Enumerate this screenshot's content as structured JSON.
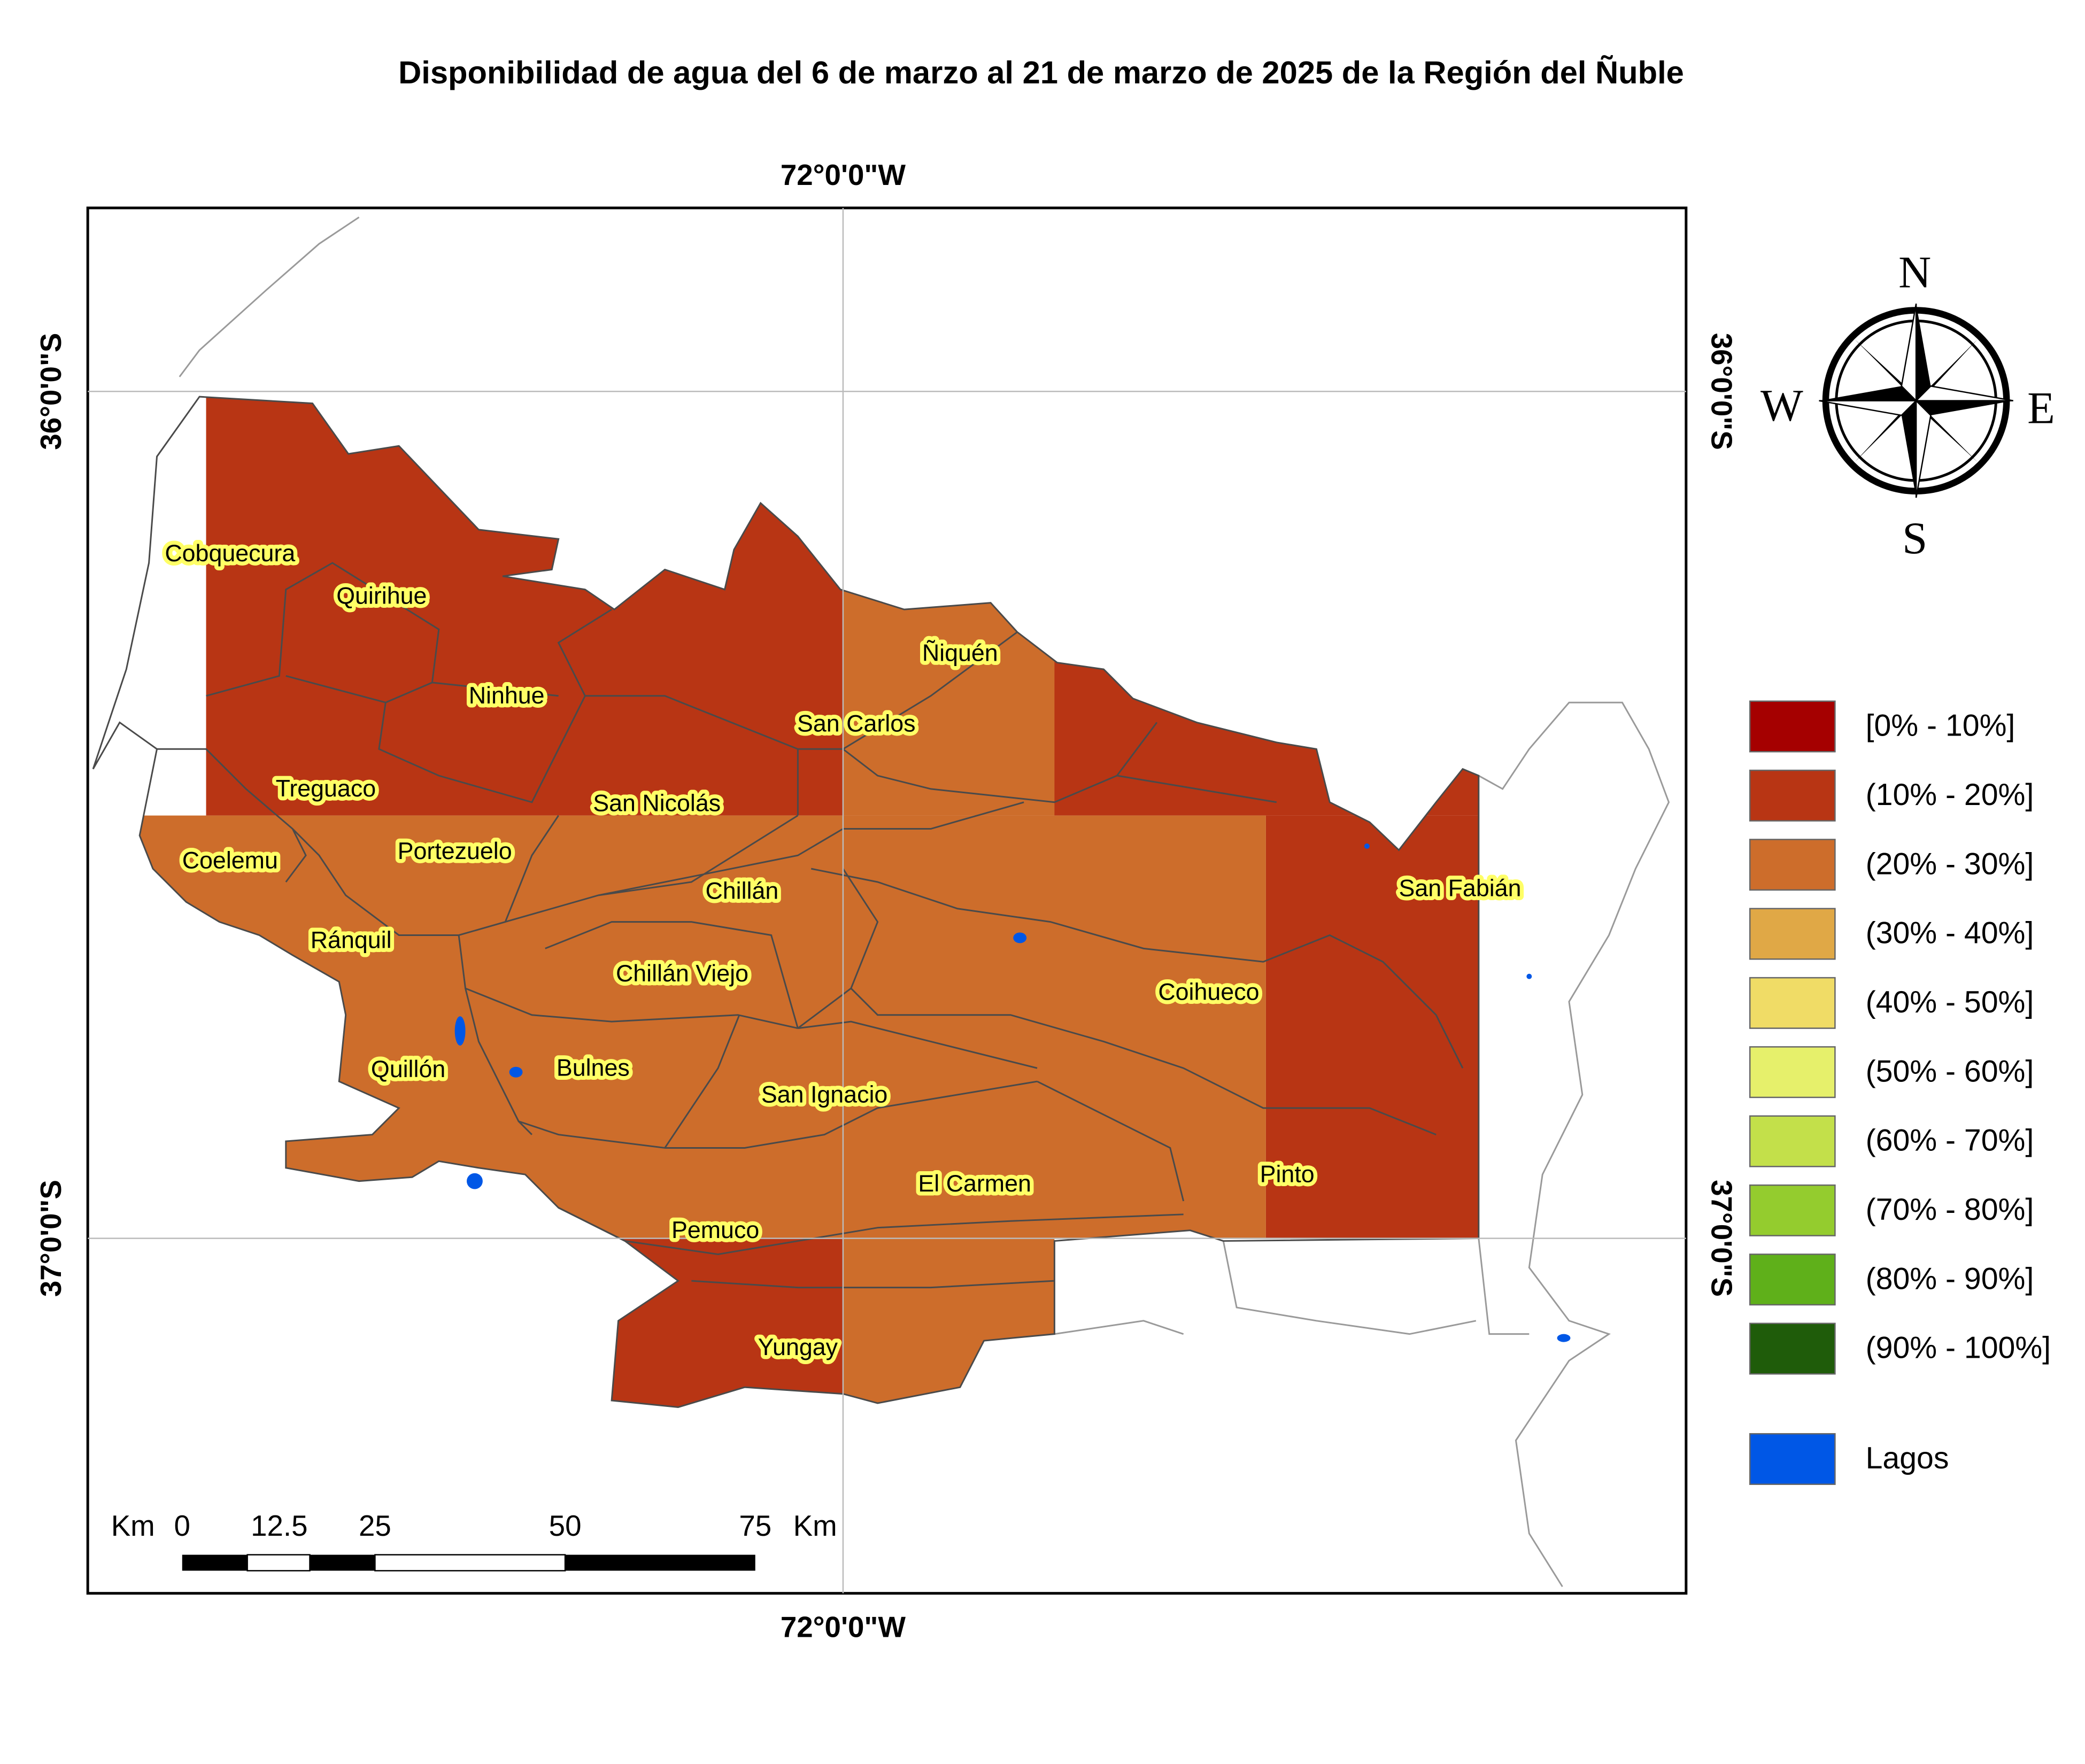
{
  "title": "Disponibilidad de agua del 6 de marzo al 21 de marzo de 2025 de la Región del Ñuble",
  "graticule": {
    "longitude": "72°0'0\"W",
    "latitudes": [
      "36°0'0\"S",
      "37°0'0\"S"
    ]
  },
  "communes": [
    "Cobquecura",
    "Quirihue",
    "Ninhue",
    "Ñiquén",
    "San Carlos",
    "Treguaco",
    "San Nicolás",
    "Coelemu",
    "Portezuelo",
    "Chillán",
    "San Fabián",
    "Ránquil",
    "Chillán Viejo",
    "Coihueco",
    "Quillón",
    "Bulnes",
    "San Ignacio",
    "El Carmen",
    "Pinto",
    "Pemuco",
    "Yungay"
  ],
  "legend": {
    "items": [
      {
        "label": "[0% - 10%]",
        "color": "#a50000"
      },
      {
        "label": "(10% - 20%]",
        "color": "#b83514"
      },
      {
        "label": "(20% - 30%]",
        "color": "#cd6d2b"
      },
      {
        "label": "(30% - 40%]",
        "color": "#e0a846"
      },
      {
        "label": "(40% - 50%]",
        "color": "#f0dc66"
      },
      {
        "label": "(50% - 60%]",
        "color": "#e6f06b"
      },
      {
        "label": "(60% - 70%]",
        "color": "#c3e04a"
      },
      {
        "label": "(70% - 80%]",
        "color": "#94cc2e"
      },
      {
        "label": "(80% - 90%]",
        "color": "#5fb01a"
      },
      {
        "label": "(90% - 100%]",
        "color": "#1f5c0a"
      }
    ],
    "lakes": {
      "label": "Lagos",
      "color": "#0057e6"
    }
  },
  "scale_bar": [
    "Km",
    "0",
    "12.5",
    "25",
    "50",
    "75",
    "Km"
  ],
  "compass": {
    "north": "N",
    "south": "S",
    "east": "E",
    "west": "W"
  }
}
